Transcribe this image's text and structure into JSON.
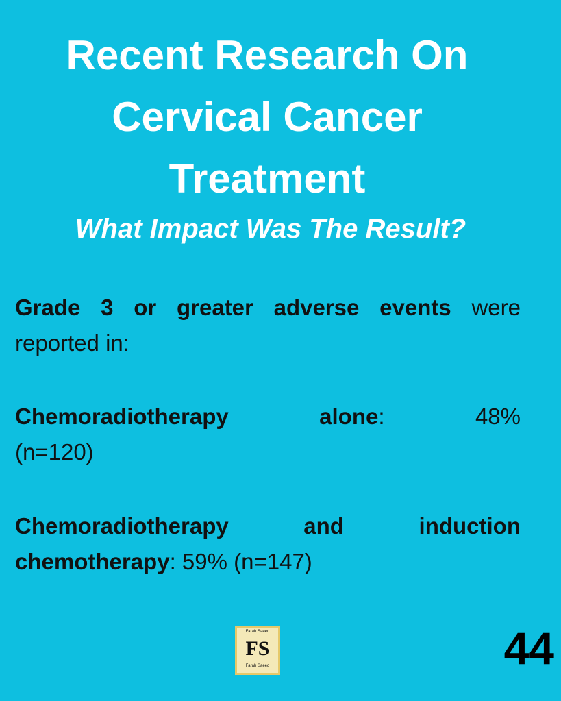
{
  "title_lines": [
    "Recent Research On",
    "Cervical Cancer",
    "Treatment"
  ],
  "subtitle": "What Impact Was The Result?",
  "intro": {
    "bold": "Grade 3 or greater adverse events",
    "text": " were reported in:"
  },
  "items": [
    {
      "label": "Chemoradiotherapy alone",
      "value": ":  48%",
      "note": "(n=120)"
    },
    {
      "label": "Chemoradiotherapy and induction chemotherapy",
      "value": ":  59% (n=147)"
    }
  ],
  "logo": {
    "top": "Farah Saeed",
    "initials": "FS",
    "bottom": "Farah Saeed"
  },
  "page_number": "44"
}
